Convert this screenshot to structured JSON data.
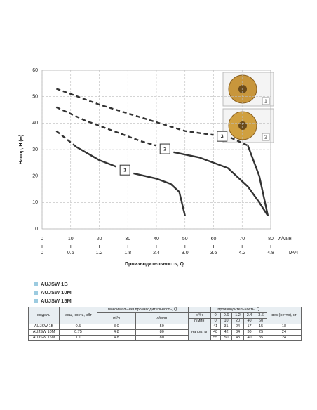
{
  "chart_data": {
    "type": "line",
    "ylabel": "Напор, Н (м)",
    "xlabel": "Производительность, Q",
    "x_unit": "л/мин",
    "x2_unit": "м³/ч",
    "xlim": [
      0,
      80
    ],
    "xticks": [
      0,
      10,
      20,
      30,
      40,
      50,
      60,
      70,
      80
    ],
    "x2lim": [
      0,
      4.8
    ],
    "x2ticks": [
      0,
      0.6,
      1.2,
      1.8,
      2.4,
      {
        "value": 3,
        "label": "3.0"
      },
      3.6,
      4.2,
      4.8
    ],
    "ylim": [
      0,
      60
    ],
    "yticks": [
      0,
      10,
      20,
      30,
      40,
      50,
      60
    ],
    "grid": true,
    "series": [
      {
        "name": "1",
        "color": "#333333",
        "dashed": {
          "x": [
            5,
            12
          ],
          "values": [
            37,
            31
          ]
        },
        "solid": {
          "x": [
            12,
            20,
            26,
            null,
            32,
            40,
            45,
            48,
            50
          ],
          "values": [
            31,
            26,
            23.5,
            null,
            21,
            19,
            17,
            14,
            5
          ]
        }
      },
      {
        "name": "2",
        "color": "#333333",
        "dashed": {
          "x": [
            5,
            15,
            25,
            35,
            40,
            null,
            46
          ],
          "values": [
            46,
            41,
            37,
            33,
            31.5,
            null,
            29
          ]
        },
        "solid": {
          "x": [
            46,
            55,
            65,
            72,
            76,
            79
          ],
          "values": [
            29,
            27,
            23,
            16,
            10,
            5
          ]
        }
      },
      {
        "name": "3",
        "color": "#333333",
        "dashed": {
          "x": [
            5,
            20,
            35,
            50,
            60,
            null,
            66,
            72
          ],
          "values": [
            53,
            47,
            42,
            37,
            35.5,
            null,
            34.5,
            31.5
          ]
        },
        "solid": {
          "x": [
            72,
            76,
            79
          ],
          "values": [
            31.5,
            20,
            5
          ]
        }
      }
    ]
  },
  "impeller_labels": [
    "1",
    "2"
  ],
  "legend": [
    "AUJSW 1B",
    "AUJSW 10M",
    "AUJSW 15M"
  ],
  "table": {
    "model_header": "модель",
    "power_header": "мощ-ность, кВт",
    "max_flow_header": "максимальная производительность, Q",
    "max_units": [
      "м³/ч",
      "л/мин"
    ],
    "flow_header": "производительность, Q",
    "units": [
      "м³/ч",
      "л/мин"
    ],
    "flows_m3h": [
      "0",
      "0.6",
      "1.2",
      "2.4",
      "3.6"
    ],
    "flows_lmin": [
      "0",
      "10",
      "20",
      "40",
      "60"
    ],
    "head_header": "напор, м",
    "weight_header": "вес (нетто), кг",
    "rows": [
      [
        "AUJSW 1B",
        "0.5",
        "3.0",
        "50",
        "41",
        "31",
        "24",
        "17",
        "15",
        "18"
      ],
      [
        "AUJSW 10M",
        "0.75",
        "4.8",
        "80",
        "48",
        "42",
        "34",
        "30",
        "25",
        "24"
      ],
      [
        "AUJSW 15M",
        "1.1",
        "4.8",
        "80",
        "55",
        "50",
        "43",
        "40",
        "35",
        "24"
      ]
    ]
  }
}
